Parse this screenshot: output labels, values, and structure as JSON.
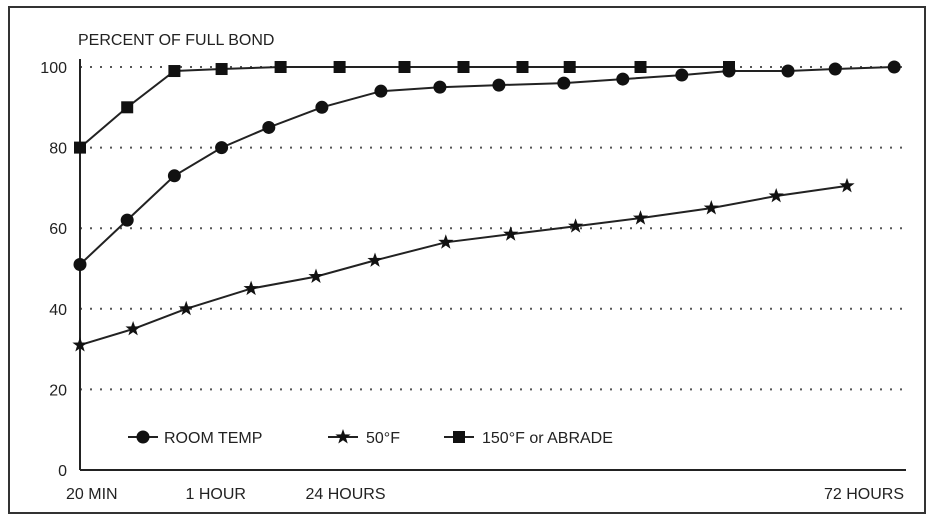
{
  "chart_data": {
    "type": "line",
    "ylabel": "PERCENT OF FULL BOND",
    "ylim": [
      0,
      100
    ],
    "yticks": [
      0,
      20,
      40,
      60,
      80,
      100
    ],
    "xlim": [
      0,
      14
    ],
    "x_tick_labels": [
      {
        "label": "20 MIN",
        "x": 0
      },
      {
        "label": "1 HOUR",
        "x": 2.3
      },
      {
        "label": "24 HOURS",
        "x": 4.5
      },
      {
        "label": "72 HOURS",
        "x": 13.6
      }
    ],
    "grid": "horizontal-dotted",
    "legend": "bottom-left",
    "series": [
      {
        "name": "ROOM TEMP",
        "marker": "circle",
        "x": [
          0,
          0.8,
          1.6,
          2.4,
          3.2,
          4.1,
          5.1,
          6.1,
          7.1,
          8.2,
          9.2,
          10.2,
          11.0,
          12.0,
          12.8,
          13.8
        ],
        "values": [
          51,
          62,
          73,
          80,
          85,
          90,
          94,
          95,
          95.5,
          96,
          97,
          98,
          99,
          99,
          99.5,
          100
        ]
      },
      {
        "name": "50°F",
        "marker": "star",
        "x": [
          0,
          0.9,
          1.8,
          2.9,
          4.0,
          5.0,
          6.2,
          7.3,
          8.4,
          9.5,
          10.7,
          11.8,
          13.0
        ],
        "values": [
          31,
          35,
          40,
          45,
          48,
          52,
          56.5,
          58.5,
          60.5,
          62.5,
          65,
          68,
          70.5
        ]
      },
      {
        "name": "150°F or ABRADE",
        "marker": "square",
        "x": [
          0,
          0.8,
          1.6,
          2.4,
          3.4,
          4.4,
          5.5,
          6.5,
          7.5,
          8.3,
          9.5,
          11.0
        ],
        "values": [
          80,
          90,
          99,
          99.5,
          100,
          100,
          100,
          100,
          100,
          100,
          100,
          100
        ]
      }
    ]
  }
}
